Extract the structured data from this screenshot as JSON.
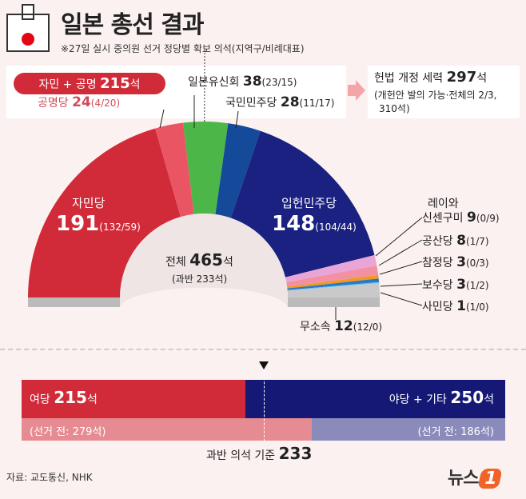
{
  "header": {
    "title": "일본 총선 결과",
    "subtitle": "※27일 실시 중의원 선거 정당별 확보 의석(지역구/비례대표)"
  },
  "coalition": {
    "label": "자민 + 공명",
    "seats": "215",
    "unit": "석"
  },
  "constitution": {
    "label": "헌법 개정 세력",
    "seats": "297",
    "unit": "석",
    "note1": "(개헌안 발의 가능·전체의 2/3,",
    "note2": "310석)"
  },
  "center": {
    "label": "전체",
    "total": "465",
    "unit": "석",
    "majority": "(과반 233석)"
  },
  "chart_data": {
    "type": "pie",
    "subtype": "half-donut",
    "total": 465,
    "majority": 233,
    "series": [
      {
        "name": "자민당",
        "value": 191,
        "detail": "(132/59)",
        "color": "#d12b39"
      },
      {
        "name": "공명당",
        "value": 24,
        "detail": "(4/20)",
        "color": "#ea5563"
      },
      {
        "name": "일본유신회",
        "value": 38,
        "detail": "(23/15)",
        "color": "#4cb648"
      },
      {
        "name": "국민민주당",
        "value": 28,
        "detail": "(11/17)",
        "color": "#15499a"
      },
      {
        "name": "입헌민주당",
        "value": 148,
        "detail": "(104/44)",
        "color": "#1a2180"
      },
      {
        "name": "레이와 신센구미",
        "name1": "레이와",
        "name2": "신센구미",
        "value": 9,
        "detail": "(0/9)",
        "color": "#e9a5d6"
      },
      {
        "name": "공산당",
        "value": 8,
        "detail": "(1/7)",
        "color": "#f291a4"
      },
      {
        "name": "참정당",
        "value": 3,
        "detail": "(0/3)",
        "color": "#f29a1a"
      },
      {
        "name": "보수당",
        "value": 3,
        "detail": "(1/2)",
        "color": "#2b78c9"
      },
      {
        "name": "사민당",
        "value": 1,
        "detail": "(1/0)",
        "color": "#5cc6ef"
      },
      {
        "name": "무소속",
        "value": 12,
        "detail": "(12/0)",
        "color": "#c9c9c9"
      }
    ]
  },
  "bars": {
    "ruling": {
      "label": "여당",
      "value": 215,
      "unit": "석",
      "color": "#d12b39"
    },
    "opposition": {
      "label": "야당 + 기타",
      "value": 250,
      "unit": "석",
      "color": "#161876"
    },
    "ruling_before": {
      "text": "(선거 전: 279석)",
      "value": 279,
      "color": "#e68b91"
    },
    "opposition_before": {
      "text": "(선거 전: 186석)",
      "value": 186,
      "color": "#8a8bbb"
    },
    "majority": {
      "label": "과반 의석 기준",
      "value": "233"
    }
  },
  "source": "자료: 교도통신, NHK",
  "logo": "뉴스1"
}
